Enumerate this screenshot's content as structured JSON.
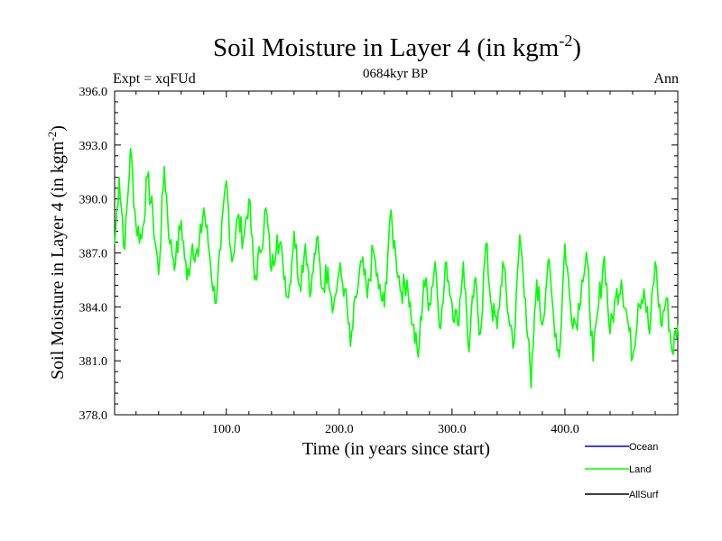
{
  "chart_data": {
    "type": "line",
    "title": "Soil Moisture in Layer 4 (in kgm",
    "title_superscript": "-2",
    "title_close": ")",
    "subtitle_left": "Expt = xqFUd",
    "subtitle_center": "0684kyr BP",
    "subtitle_right": "Ann",
    "xlabel": "Time (in years since start)",
    "ylabel": "Soil Moisture in Layer 4 (in kgm",
    "ylabel_superscript": "-2",
    "ylabel_close": ")",
    "xlim": [
      1,
      500
    ],
    "ylim": [
      378,
      396
    ],
    "x_ticks": [
      100,
      200,
      300,
      400
    ],
    "x_tick_labels": [
      "100.0",
      "200.0",
      "300.0",
      "400.0"
    ],
    "y_ticks": [
      378,
      381,
      384,
      387,
      390,
      393,
      396
    ],
    "y_tick_labels": [
      "378.0",
      "381.0",
      "384.0",
      "387.0",
      "390.0",
      "393.0",
      "396.0"
    ],
    "legend": {
      "placement": "bottom-right",
      "entries": [
        {
          "name": "Ocean",
          "color": "#0000ff"
        },
        {
          "name": "Land",
          "color": "#00ff00"
        },
        {
          "name": "AllSurf",
          "color": "#000000"
        }
      ]
    },
    "series": [
      {
        "name": "Land",
        "color": "#00ff00",
        "x": [
          1,
          5,
          10,
          15,
          20,
          25,
          30,
          35,
          40,
          45,
          50,
          55,
          60,
          65,
          70,
          75,
          80,
          85,
          90,
          95,
          100,
          105,
          110,
          115,
          120,
          125,
          130,
          135,
          140,
          145,
          150,
          155,
          160,
          165,
          170,
          175,
          180,
          185,
          190,
          195,
          200,
          205,
          210,
          215,
          220,
          225,
          230,
          235,
          240,
          245,
          250,
          255,
          260,
          265,
          270,
          275,
          280,
          285,
          290,
          295,
          300,
          305,
          310,
          315,
          320,
          325,
          330,
          335,
          340,
          345,
          350,
          355,
          360,
          365,
          370,
          375,
          380,
          385,
          390,
          395,
          400,
          405,
          410,
          415,
          420,
          425,
          430,
          435,
          440,
          445,
          450,
          455,
          460,
          465,
          470,
          475,
          480,
          485,
          490,
          495,
          500
        ],
        "values": [
          387.5,
          391.2,
          387.2,
          392.8,
          388.5,
          387.8,
          391.2,
          389.0,
          385.8,
          391.8,
          387.5,
          386.5,
          388.8,
          385.5,
          387.5,
          386.8,
          389.5,
          387.0,
          384.2,
          387.2,
          391.0,
          386.5,
          389.0,
          387.8,
          390.0,
          385.5,
          387.0,
          389.5,
          386.0,
          388.0,
          386.5,
          384.5,
          388.2,
          385.2,
          387.5,
          384.8,
          387.8,
          385.0,
          386.2,
          384.0,
          386.0,
          385.0,
          381.8,
          384.5,
          386.5,
          384.5,
          387.2,
          385.0,
          384.0,
          389.0,
          387.0,
          384.8,
          385.5,
          383.0,
          381.2,
          385.5,
          384.2,
          386.5,
          382.8,
          386.5,
          384.2,
          383.0,
          386.5,
          381.5,
          385.5,
          382.5,
          387.5,
          384.0,
          382.8,
          386.5,
          383.5,
          382.0,
          388.0,
          384.5,
          379.5,
          385.5,
          383.0,
          386.5,
          383.5,
          381.2,
          387.5,
          384.0,
          383.0,
          385.5,
          386.5,
          381.0,
          384.2,
          386.8,
          382.5,
          384.5,
          385.5,
          383.5,
          381.2,
          384.2,
          385.0,
          382.5,
          386.5,
          383.0,
          384.5,
          381.5,
          383.0
        ]
      },
      {
        "name": "Ocean",
        "color": "#0000ff",
        "values": []
      },
      {
        "name": "AllSurf",
        "color": "#000000",
        "values": []
      }
    ]
  }
}
